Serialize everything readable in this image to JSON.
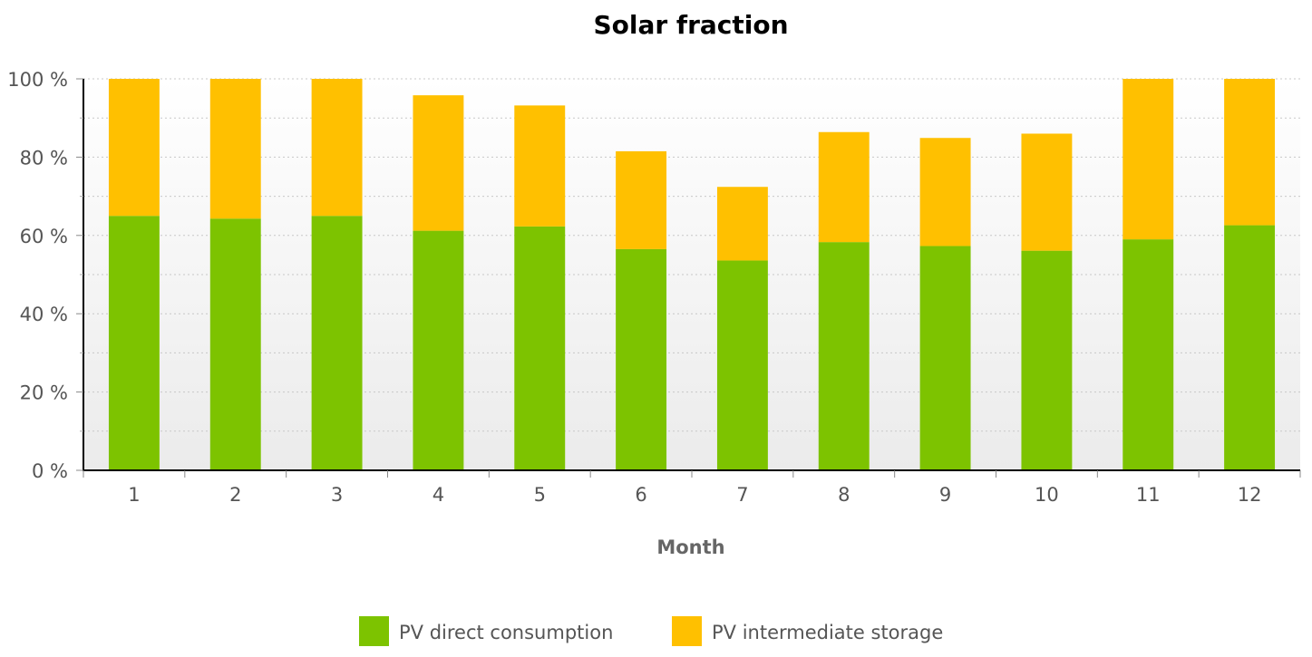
{
  "chart_data": {
    "type": "bar",
    "stacked": true,
    "title": "Solar fraction",
    "xlabel": "Month",
    "ylabel": "",
    "ylim": [
      0,
      100
    ],
    "y_ticks": [
      0,
      20,
      40,
      60,
      80,
      100
    ],
    "y_tick_suffix": " %",
    "grid": true,
    "legend_position": "bottom-center",
    "categories": [
      "1",
      "2",
      "3",
      "4",
      "5",
      "6",
      "7",
      "8",
      "9",
      "10",
      "11",
      "12"
    ],
    "series": [
      {
        "name": "PV direct consumption",
        "color": "#7dc300",
        "values": [
          65,
          64.3,
          65,
          61.2,
          62.3,
          56.5,
          53.6,
          58.3,
          57.3,
          56.1,
          59,
          62.6
        ]
      },
      {
        "name": "PV intermediate storage",
        "color": "#ffc000",
        "values": [
          35,
          35.7,
          35,
          34.6,
          30.9,
          25,
          18.8,
          28.1,
          27.6,
          29.9,
          41,
          37.4
        ]
      }
    ]
  }
}
